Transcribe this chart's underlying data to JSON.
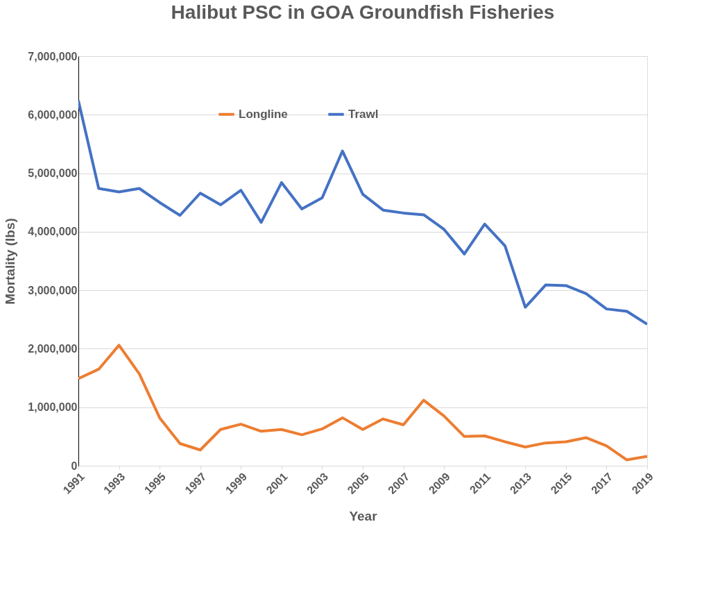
{
  "chart_data": {
    "type": "line",
    "title": "Halibut PSC in GOA Groundfish Fisheries",
    "xlabel": "Year",
    "ylabel": "Mortality (lbs)",
    "x": [
      1991,
      1992,
      1993,
      1994,
      1995,
      1996,
      1997,
      1998,
      1999,
      2000,
      2001,
      2002,
      2003,
      2004,
      2005,
      2006,
      2007,
      2008,
      2009,
      2010,
      2011,
      2012,
      2013,
      2014,
      2015,
      2016,
      2017,
      2018,
      2019
    ],
    "xlim": [
      1991,
      2019
    ],
    "xticks": [
      1991,
      1993,
      1995,
      1997,
      1999,
      2001,
      2003,
      2005,
      2007,
      2009,
      2011,
      2013,
      2015,
      2017,
      2019
    ],
    "ylim": [
      0,
      7000000
    ],
    "yticks": [
      {
        "value": 0,
        "label": "0"
      },
      {
        "value": 1000000,
        "label": "1,000,000"
      },
      {
        "value": 2000000,
        "label": "2,000,000"
      },
      {
        "value": 3000000,
        "label": "3,000,000"
      },
      {
        "value": 4000000,
        "label": "4,000,000"
      },
      {
        "value": 5000000,
        "label": "5,000,000"
      },
      {
        "value": 6000000,
        "label": "6,000,000"
      },
      {
        "value": 7000000,
        "label": "7,000,000"
      }
    ],
    "grid": "y",
    "legend": "top",
    "marker": "none",
    "line_style": "solid",
    "series": [
      {
        "name": "Longline",
        "color": "#ed7d31",
        "values": [
          1490000,
          1650000,
          2060000,
          1570000,
          820000,
          380000,
          270000,
          620000,
          710000,
          590000,
          620000,
          530000,
          630000,
          820000,
          620000,
          800000,
          700000,
          1120000,
          850000,
          500000,
          510000,
          410000,
          320000,
          390000,
          410000,
          480000,
          340000,
          100000,
          160000
        ]
      },
      {
        "name": "Trawl",
        "color": "#4472c4",
        "values": [
          6240000,
          4740000,
          4680000,
          4740000,
          4500000,
          4280000,
          4660000,
          4460000,
          4710000,
          4160000,
          4840000,
          4390000,
          4580000,
          5380000,
          4640000,
          4370000,
          4320000,
          4290000,
          4040000,
          3620000,
          4130000,
          3760000,
          2710000,
          3090000,
          3080000,
          2940000,
          2680000,
          2640000,
          2420000
        ]
      }
    ]
  }
}
